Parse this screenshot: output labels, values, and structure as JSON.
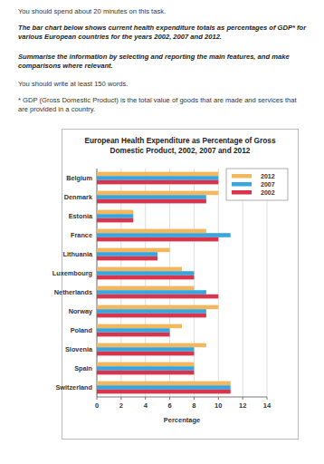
{
  "page": {
    "time_note": "You should spend about 20 minutes on this task.",
    "task_description": "The bar chart below shows current health expenditure totals as percentages of GDP* for various European countries for the years 2002, 2007 and 2012.",
    "task_instruction": "Summarise the information by selecting and reporting the main features, and make comparisons where relevant.",
    "word_note": "You should write at least 150 words.",
    "footnote": "* GDP (Gross Domestic Product) is the total value of goods that are made and services that are provided in a country."
  },
  "chart_data": {
    "type": "bar",
    "orientation": "horizontal",
    "title": "European Health Expenditure as Percentage of Gross Domestic Product, 2002, 2007 and 2012",
    "xlabel": "Percentage",
    "categories": [
      "Belgium",
      "Denmark",
      "Estonia",
      "France",
      "Lithuania",
      "Luxembourg",
      "Netherlands",
      "Norway",
      "Poland",
      "Slovenia",
      "Spain",
      "Switzerland"
    ],
    "series": [
      {
        "name": "2012",
        "color": "#f3b75e",
        "values": [
          10,
          10,
          3,
          9,
          6,
          7,
          8,
          10,
          7,
          9,
          8,
          11
        ]
      },
      {
        "name": "2007",
        "color": "#38a6de",
        "values": [
          10,
          9,
          3,
          11,
          5,
          8,
          9,
          9,
          6,
          8,
          8,
          11
        ]
      },
      {
        "name": "2002",
        "color": "#d8344b",
        "values": [
          10,
          9,
          3,
          10,
          5,
          8,
          10,
          9,
          6,
          8,
          8,
          11
        ]
      }
    ],
    "xlim": [
      0,
      14
    ],
    "xticks": [
      0,
      2,
      4,
      6,
      8,
      10,
      12,
      14
    ],
    "grid": true,
    "legend": "top-right"
  }
}
